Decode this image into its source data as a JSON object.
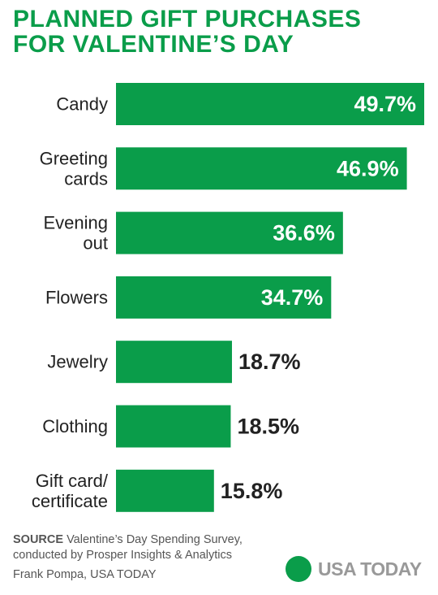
{
  "title_line1": "PLANNED GIFT PURCHASES",
  "title_line2": "FOR VALENTINE’S DAY",
  "colors": {
    "accent": "#0a9d4a",
    "label_text": "#222222",
    "footer_text": "#555555",
    "logo_text": "#999999"
  },
  "chart_data": {
    "type": "bar",
    "orientation": "horizontal",
    "categories": [
      [
        "Candy"
      ],
      [
        "Greeting",
        "cards"
      ],
      [
        "Evening",
        "out"
      ],
      [
        "Flowers"
      ],
      [
        "Jewelry"
      ],
      [
        "Clothing"
      ],
      [
        "Gift card/",
        "certificate"
      ]
    ],
    "values": [
      49.7,
      46.9,
      36.6,
      34.7,
      18.7,
      18.5,
      15.8
    ],
    "value_labels": [
      "49.7%",
      "46.9%",
      "36.6%",
      "34.7%",
      "18.7%",
      "18.5%",
      "15.8%"
    ],
    "xlim": [
      0,
      49.7
    ],
    "grid": false,
    "legend": "none"
  },
  "footer": {
    "source_label": "SOURCE",
    "source_text": " Valentine’s Day Spending Survey,",
    "source_text2": "conducted by Prosper Insights & Analytics",
    "credit": "Frank Pompa, USA TODAY"
  },
  "logo": {
    "text": "USA TODAY",
    "icon": "usa-today-dot-icon"
  }
}
